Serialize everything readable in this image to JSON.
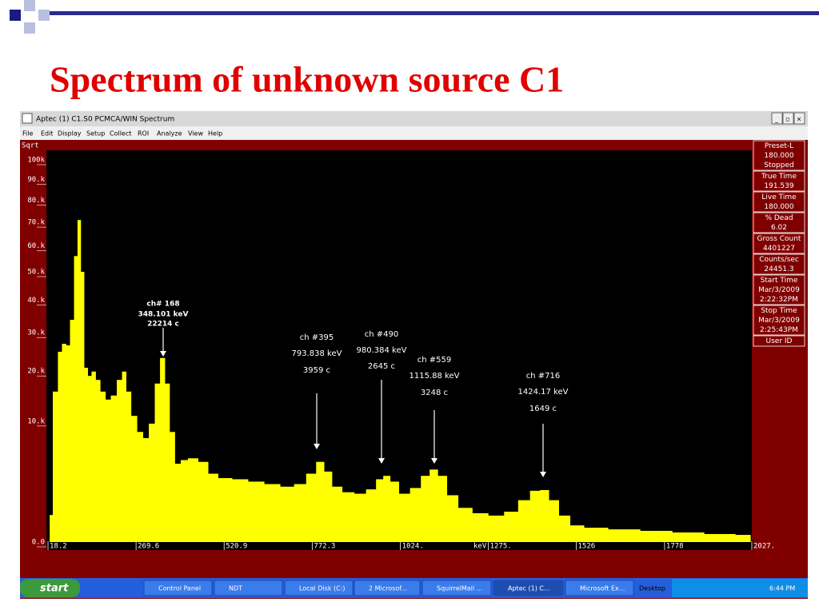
{
  "slide": {
    "title": "Spectrum of unknown source C1"
  },
  "window": {
    "title": "Aptec (1) C1.S0 PCMCA/WIN Spectrum",
    "menu": [
      "File",
      "Edit",
      "Display",
      "Setup",
      "Collect",
      "ROI",
      "Analyze",
      "View",
      "Help"
    ]
  },
  "chart_data": {
    "type": "bar",
    "y_scale": "sqrt",
    "y_label": "Sqrt",
    "x_label": "keV",
    "color": "#ffff00",
    "xlim": [
      18.2,
      2027
    ],
    "ylim": [
      0,
      100000
    ],
    "xticks": [
      18.2,
      269.6,
      520.9,
      772.3,
      {
        "value": 1024,
        "label": "1024."
      },
      {
        "value": 1275,
        "label": "1275."
      },
      1526,
      1778,
      {
        "value": 2027,
        "label": "2027."
      }
    ],
    "yticks": [
      {
        "value": 0,
        "label": "0.0"
      },
      {
        "value": 10000,
        "label": "10.k"
      },
      {
        "value": 20000,
        "label": "20.k"
      },
      {
        "value": 30000,
        "label": "30.k"
      },
      {
        "value": 40000,
        "label": "40.k"
      },
      {
        "value": 50000,
        "label": "50.k"
      },
      {
        "value": 60000,
        "label": "60.k"
      },
      {
        "value": 70000,
        "label": "70.k"
      },
      {
        "value": 80000,
        "label": "80.k"
      },
      {
        "value": 90000,
        "label": "90.k"
      },
      {
        "value": 100000,
        "label": "100k"
      }
    ],
    "x": [
      23,
      41,
      52,
      64,
      75,
      87,
      98,
      107,
      116,
      126,
      137,
      148,
      160,
      174,
      190,
      205,
      224,
      235,
      247,
      263,
      281,
      297,
      315,
      331,
      345,
      358,
      372,
      388,
      406,
      429,
      464,
      486,
      521,
      566,
      612,
      658,
      703,
      738,
      772,
      795,
      817,
      840,
      875,
      909,
      943,
      966,
      984,
      1005,
      1034,
      1069,
      1096,
      1119,
      1142,
      1171,
      1206,
      1252,
      1297,
      1343,
      1377,
      1411,
      1434,
      1461,
      1491,
      1525,
      1571,
      1662,
      1754,
      1845,
      1936,
      2023
    ],
    "values": [
      500,
      15500,
      24800,
      26900,
      26500,
      33800,
      56000,
      71000,
      50000,
      20800,
      18900,
      19900,
      18000,
      15500,
      13900,
      14700,
      18000,
      19900,
      15500,
      10900,
      8300,
      7400,
      9600,
      17200,
      23200,
      17200,
      8300,
      4200,
      4600,
      4800,
      4400,
      3200,
      2800,
      2700,
      2500,
      2300,
      2100,
      2300,
      3200,
      4400,
      3400,
      2100,
      1700,
      1600,
      1900,
      2700,
      3000,
      2500,
      1600,
      2000,
      3000,
      3600,
      3000,
      1500,
      800,
      570,
      480,
      630,
      1200,
      1800,
      1850,
      1200,
      480,
      190,
      140,
      110,
      86,
      63,
      44,
      35
    ],
    "annotations": [
      {
        "lines": [
          "ch# 168",
          "348.101 keV",
          "22214 c"
        ]
      },
      {
        "lines": [
          "ch #395",
          "793.838 keV",
          "3959 c"
        ]
      },
      {
        "lines": [
          "ch #490",
          "980.384  keV",
          "2645 c"
        ]
      },
      {
        "lines": [
          "ch #559",
          "1115.88  keV",
          "3248 c"
        ]
      },
      {
        "lines": [
          "ch #716",
          "1424.17  keV",
          "1649 c"
        ]
      }
    ]
  },
  "side_panel": [
    {
      "lines": [
        "Preset-L",
        "180.000",
        "Stopped"
      ]
    },
    {
      "lines": [
        "True Time",
        "191.539"
      ]
    },
    {
      "lines": [
        "Live Time",
        "180.000"
      ]
    },
    {
      "lines": [
        "% Dead",
        "6.02"
      ]
    },
    {
      "lines": [
        "Gross Count",
        "4401227"
      ]
    },
    {
      "lines": [
        "Counts/sec",
        "24451.3"
      ]
    },
    {
      "lines": [
        "Start Time",
        "Mar/3/2009",
        "2:22:32PM"
      ]
    },
    {
      "lines": [
        "Stop Time",
        "Mar/3/2009",
        "2:25:43PM"
      ]
    },
    {
      "lines": [
        "User ID"
      ]
    }
  ],
  "taskbar": {
    "start": "start",
    "items": [
      "Control Panel",
      "NDT",
      "Local Disk (C:)",
      "2 Microsof...",
      "SquirrelMail ...",
      "Aptec (1) C...",
      "Microsoft Ex...",
      "Desktop"
    ],
    "clock": "6:44 PM"
  }
}
